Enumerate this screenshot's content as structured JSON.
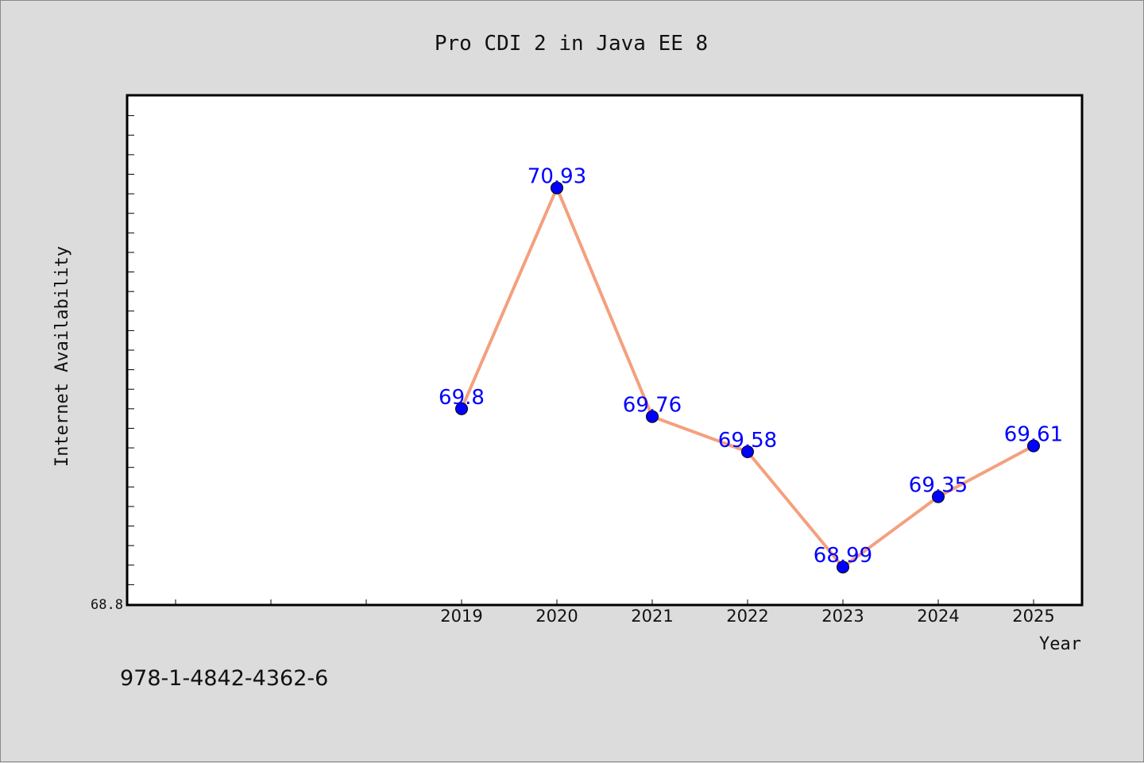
{
  "chart_data": {
    "type": "line",
    "title": "Pro CDI 2 in Java EE 8",
    "xlabel": "Year",
    "ylabel": "Internet Availability",
    "x": [
      "2019",
      "2020",
      "2021",
      "2022",
      "2023",
      "2024",
      "2025"
    ],
    "series": [
      {
        "values": [
          69.8,
          70.93,
          69.76,
          69.58,
          68.99,
          69.35,
          69.61
        ],
        "labels": [
          "69.8",
          "70.93",
          "69.76",
          "69.58",
          "68.99",
          "69.35",
          "69.61"
        ],
        "line_color": "#f4a07e",
        "marker_color": "#0000ff"
      }
    ],
    "ylim": [
      68.8,
      71.4
    ],
    "y_tick_labels": [
      "68.8"
    ],
    "grid": false,
    "legend": "none"
  },
  "footer": {
    "isbn": "978-1-4842-4362-6"
  }
}
